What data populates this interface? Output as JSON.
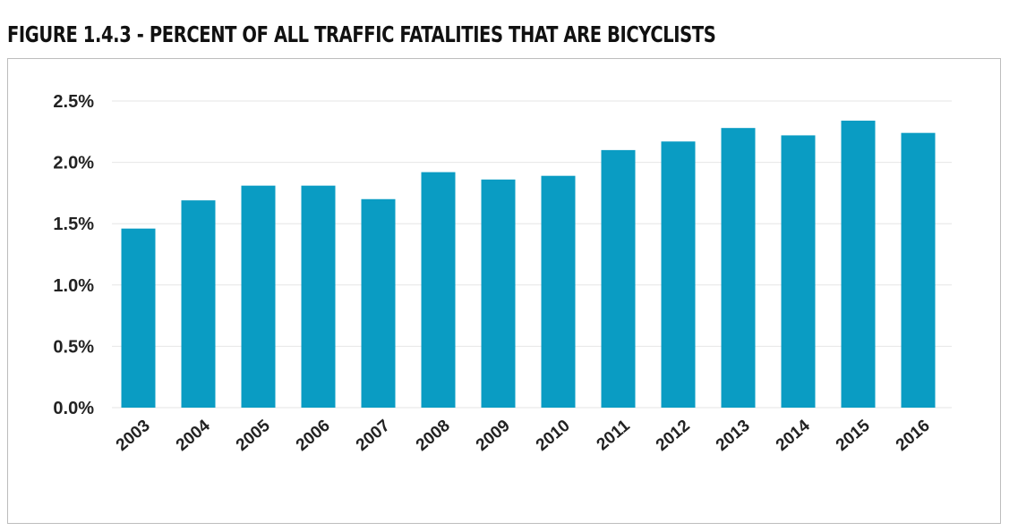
{
  "title": "FIGURE 1.4.3 - PERCENT OF ALL TRAFFIC FATALITIES THAT ARE BICYCLISTS",
  "colors": {
    "bar": "#0a9cc3",
    "grid": "#e6e6e6",
    "frame": "#bdbdbd"
  },
  "chart_data": {
    "type": "bar",
    "title": "FIGURE 1.4.3 - PERCENT OF ALL TRAFFIC FATALITIES THAT ARE BICYCLISTS",
    "xlabel": "",
    "ylabel": "",
    "categories": [
      "2003",
      "2004",
      "2005",
      "2006",
      "2007",
      "2008",
      "2009",
      "2010",
      "2011",
      "2012",
      "2013",
      "2014",
      "2015",
      "2016"
    ],
    "values": [
      1.46,
      1.69,
      1.81,
      1.81,
      1.7,
      1.92,
      1.86,
      1.89,
      2.1,
      2.17,
      2.28,
      2.22,
      2.34,
      2.24
    ],
    "value_unit": "%",
    "ylim": [
      0,
      2.5
    ],
    "yticks": [
      {
        "value": 0,
        "label": "0.0%"
      },
      {
        "value": 0.5,
        "label": "0.5%"
      },
      {
        "value": 1.0,
        "label": "1.0%"
      },
      {
        "value": 1.5,
        "label": "1.5%"
      },
      {
        "value": 2.0,
        "label": "2.0%"
      },
      {
        "value": 2.5,
        "label": "2.5%"
      }
    ],
    "grid": true,
    "legend": "none"
  }
}
